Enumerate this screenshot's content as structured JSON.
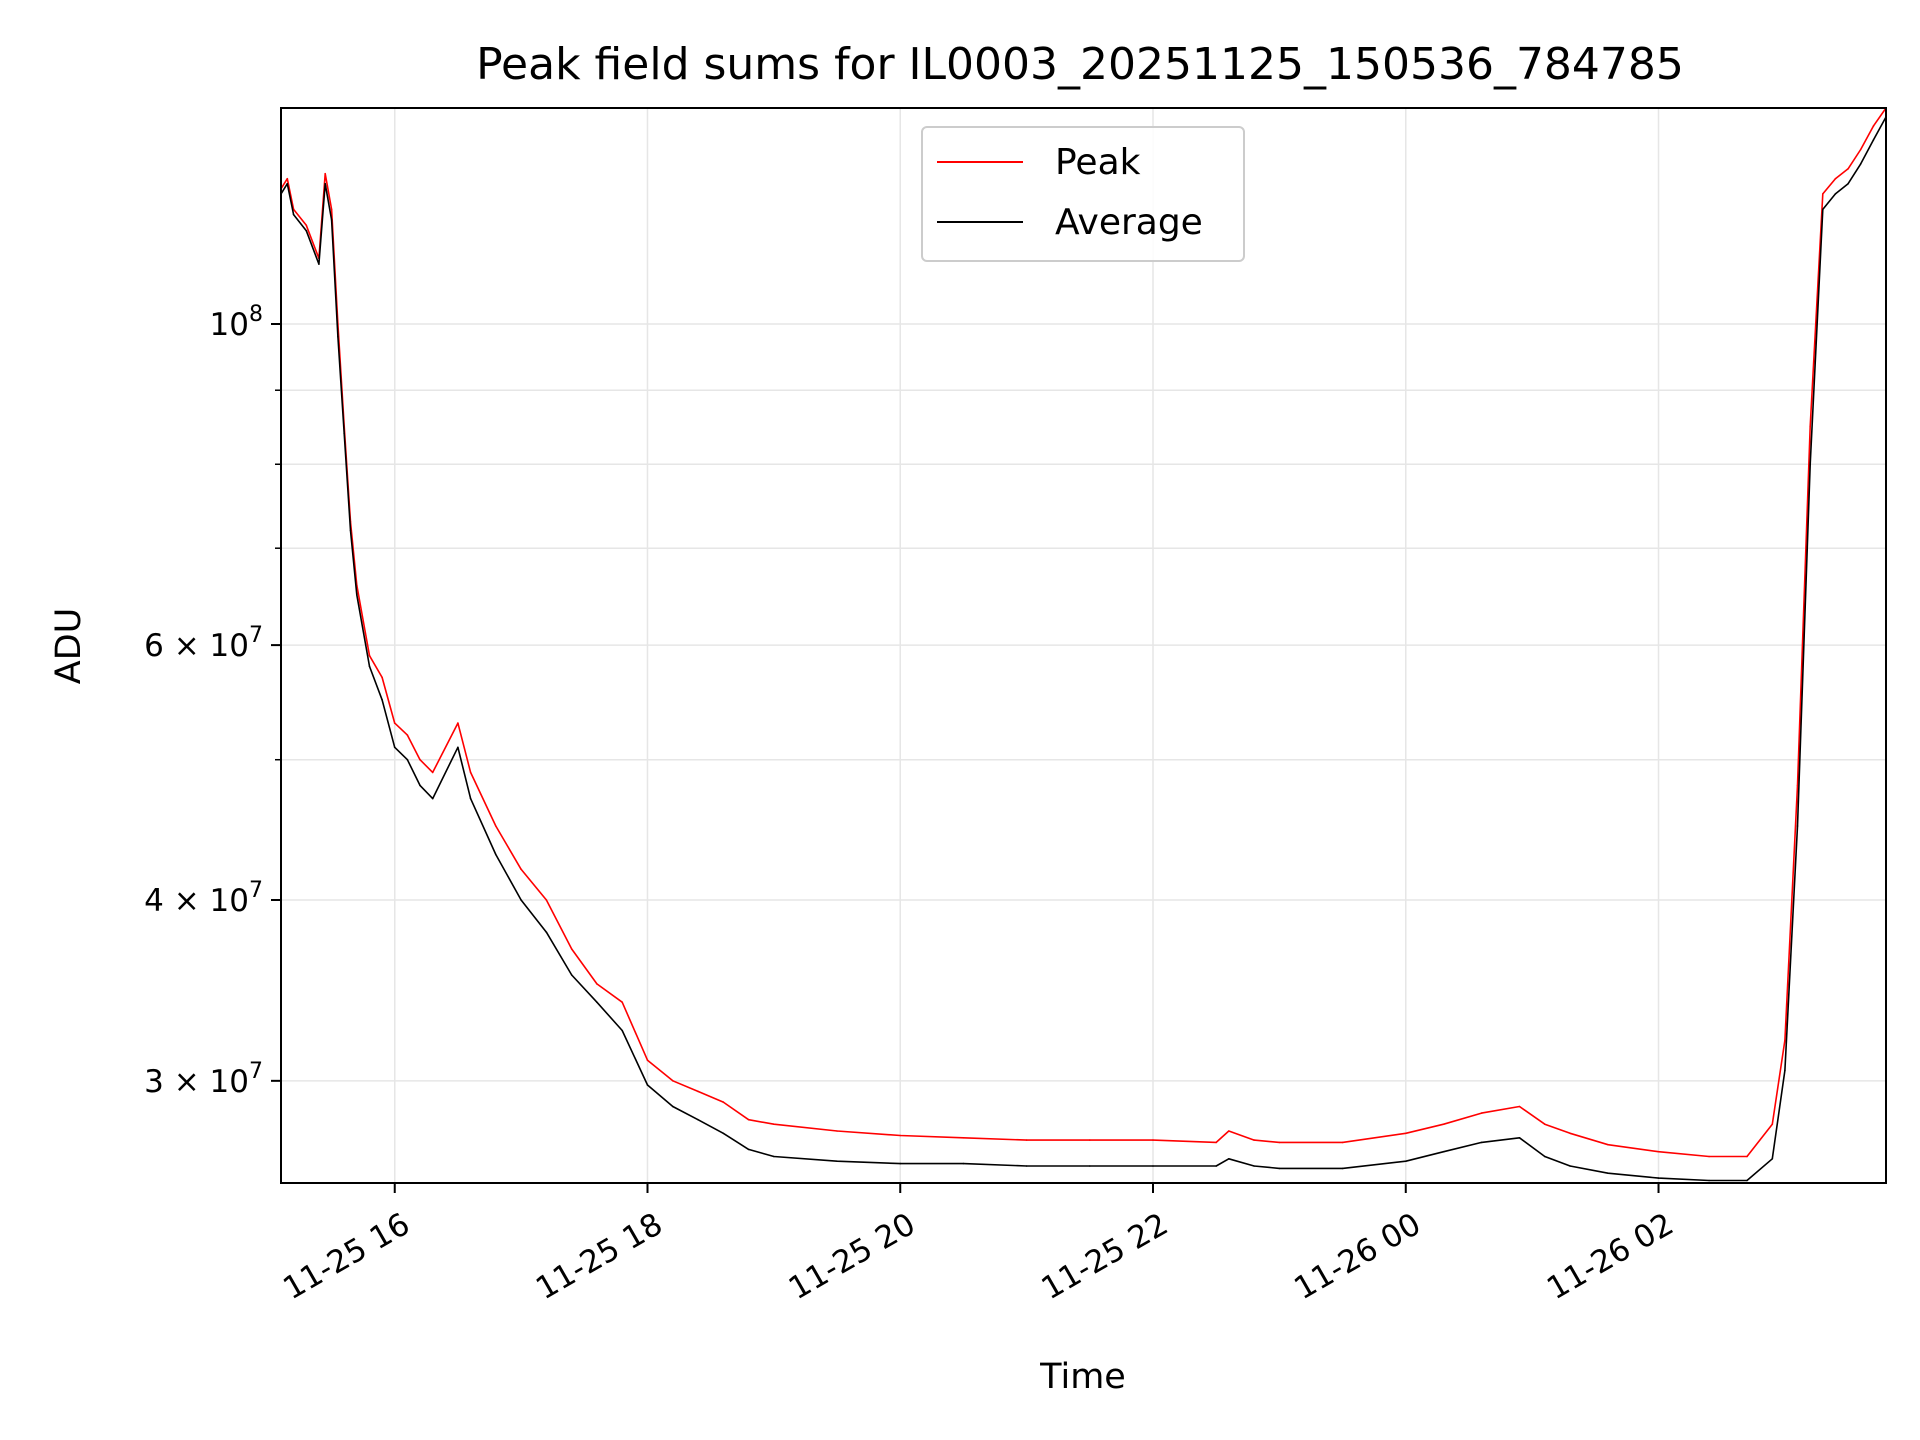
{
  "chart_data": {
    "type": "line",
    "title": "Peak field sums for IL0003_20251125_150536_784785",
    "xlabel": "Time",
    "ylabel": "ADU",
    "yscale": "log",
    "grid": true,
    "legend_position": "top-center",
    "xlim_hours": [
      15.1,
      27.8
    ],
    "ylim": [
      25500000,
      141000000
    ],
    "x_ticks": [
      {
        "hours": 16,
        "label": "11-25 16"
      },
      {
        "hours": 18,
        "label": "11-25 18"
      },
      {
        "hours": 20,
        "label": "11-25 20"
      },
      {
        "hours": 22,
        "label": "11-25 22"
      },
      {
        "hours": 24,
        "label": "11-26 00"
      },
      {
        "hours": 26,
        "label": "11-26 02"
      }
    ],
    "y_ticks": [
      {
        "value": 30000000,
        "base": "3",
        "exp": "7"
      },
      {
        "value": 40000000,
        "base": "4",
        "exp": "7"
      },
      {
        "value": 60000000,
        "base": "6",
        "exp": "7"
      },
      {
        "value": 100000000,
        "base": "",
        "exp": "8"
      }
    ],
    "y_minor_ticks": [
      50000000,
      70000000,
      80000000,
      90000000
    ],
    "series": [
      {
        "name": "Peak",
        "color": "#ff0000",
        "x_hours": [
          15.1,
          15.15,
          15.2,
          15.3,
          15.4,
          15.45,
          15.5,
          15.55,
          15.6,
          15.65,
          15.7,
          15.8,
          15.9,
          16.0,
          16.1,
          16.2,
          16.3,
          16.5,
          16.6,
          16.8,
          17.0,
          17.2,
          17.4,
          17.6,
          17.8,
          18.0,
          18.2,
          18.4,
          18.6,
          18.8,
          19.0,
          19.5,
          20.0,
          20.5,
          21.0,
          21.5,
          22.0,
          22.5,
          22.6,
          22.8,
          23.0,
          23.5,
          24.0,
          24.3,
          24.6,
          24.9,
          25.1,
          25.3,
          25.6,
          26.0,
          26.4,
          26.7,
          26.9,
          27.0,
          27.1,
          27.2,
          27.3,
          27.4,
          27.5,
          27.6,
          27.7,
          27.8
        ],
        "values": [
          124000000,
          126000000,
          120000000,
          117000000,
          111000000,
          127000000,
          120000000,
          100000000,
          85000000,
          73000000,
          66000000,
          59000000,
          57000000,
          53000000,
          52000000,
          50000000,
          49000000,
          53000000,
          49000000,
          45000000,
          42000000,
          40000000,
          37000000,
          35000000,
          34000000,
          31000000,
          30000000,
          29500000,
          29000000,
          28200000,
          28000000,
          27700000,
          27500000,
          27400000,
          27300000,
          27300000,
          27300000,
          27200000,
          27700000,
          27300000,
          27200000,
          27200000,
          27600000,
          28000000,
          28500000,
          28800000,
          28000000,
          27600000,
          27100000,
          26800000,
          26600000,
          26600000,
          28000000,
          32000000,
          48000000,
          85000000,
          123000000,
          126000000,
          128000000,
          132000000,
          137000000,
          141000000
        ]
      },
      {
        "name": "Average",
        "color": "#000000",
        "x_hours": [
          15.1,
          15.15,
          15.2,
          15.3,
          15.4,
          15.45,
          15.5,
          15.55,
          15.6,
          15.65,
          15.7,
          15.8,
          15.9,
          16.0,
          16.1,
          16.2,
          16.3,
          16.5,
          16.6,
          16.8,
          17.0,
          17.2,
          17.4,
          17.6,
          17.8,
          18.0,
          18.2,
          18.4,
          18.6,
          18.8,
          19.0,
          19.5,
          20.0,
          20.5,
          21.0,
          21.5,
          22.0,
          22.5,
          22.6,
          22.8,
          23.0,
          23.5,
          24.0,
          24.3,
          24.6,
          24.9,
          25.1,
          25.3,
          25.6,
          26.0,
          26.4,
          26.7,
          26.9,
          27.0,
          27.1,
          27.2,
          27.3,
          27.4,
          27.5,
          27.6,
          27.7,
          27.8
        ],
        "values": [
          123000000,
          125000000,
          119000000,
          116000000,
          110000000,
          125000000,
          118000000,
          98000000,
          84000000,
          72000000,
          65000000,
          58000000,
          55000000,
          51000000,
          50000000,
          48000000,
          47000000,
          51000000,
          47000000,
          43000000,
          40000000,
          38000000,
          35500000,
          34000000,
          32500000,
          29800000,
          28800000,
          28200000,
          27600000,
          26900000,
          26600000,
          26400000,
          26300000,
          26300000,
          26200000,
          26200000,
          26200000,
          26200000,
          26500000,
          26200000,
          26100000,
          26100000,
          26400000,
          26800000,
          27200000,
          27400000,
          26600000,
          26200000,
          25900000,
          25700000,
          25600000,
          25600000,
          26500000,
          30500000,
          45000000,
          80000000,
          120000000,
          123000000,
          125000000,
          129000000,
          134000000,
          139000000
        ]
      }
    ]
  }
}
